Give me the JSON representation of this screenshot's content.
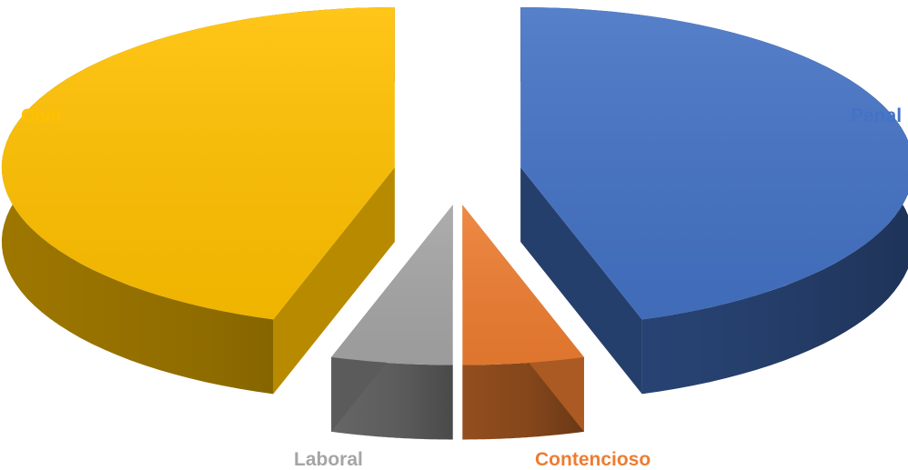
{
  "chart_data": {
    "type": "pie",
    "style": "3d-exploded",
    "categories": [
      "Penal",
      "Contencioso",
      "Laboral",
      "Civil"
    ],
    "values": [
      45,
      5,
      5,
      45
    ],
    "colors": {
      "Penal": "#4472C4",
      "Contencioso": "#ED7D31",
      "Laboral": "#A5A5A5",
      "Civil": "#FFC000"
    },
    "legend": "none",
    "data_labels": "category-name",
    "title": ""
  }
}
